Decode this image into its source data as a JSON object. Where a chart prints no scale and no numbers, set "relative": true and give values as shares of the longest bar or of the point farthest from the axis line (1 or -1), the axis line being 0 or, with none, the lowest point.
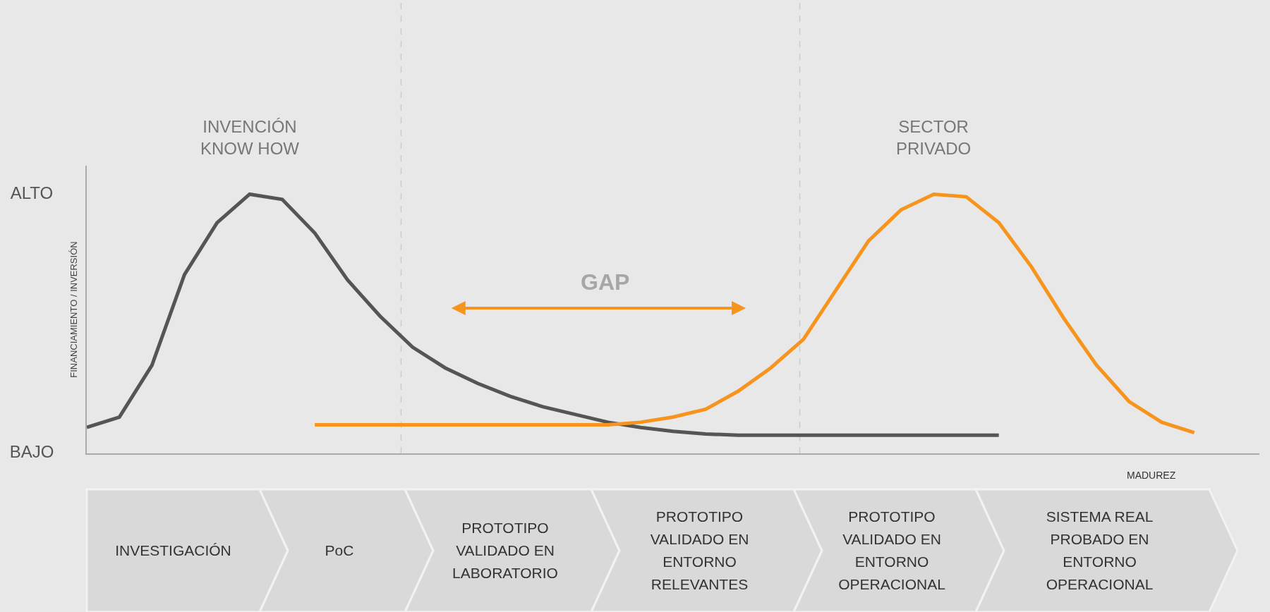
{
  "chart_data": {
    "type": "line",
    "xlabel": "MADUREZ",
    "ylabel": "FINANCIAMIENTO / INVERSIÓN",
    "categories": [
      null,
      null,
      null,
      null,
      null,
      null,
      null,
      null,
      null,
      null,
      null,
      null,
      null,
      null,
      null,
      null,
      null,
      null,
      null,
      null,
      null,
      null,
      null,
      null,
      null,
      null,
      null,
      null,
      null,
      null,
      null,
      null,
      null,
      null,
      null,
      null
    ],
    "relative": true,
    "legend": false,
    "marker": "none",
    "line_style": "solid",
    "series": [
      {
        "name": "INVENCIÓN\nKNOW HOW",
        "color": "#555555",
        "values": [
          0.1,
          0.14,
          0.34,
          0.69,
          0.89,
          1,
          0.98,
          0.85,
          0.67,
          0.53,
          0.41,
          0.33,
          0.27,
          0.22,
          0.18,
          0.15,
          0.12,
          0.1,
          0.085,
          0.075,
          0.07,
          0.07,
          0.07,
          0.07,
          0.07,
          0.07,
          0.07,
          0.07,
          0.07,
          null,
          null,
          null,
          null,
          null,
          null,
          null
        ]
      },
      {
        "name": "SECTOR\nPRIVADO",
        "color": "#f7941d",
        "values": [
          null,
          null,
          null,
          null,
          null,
          null,
          null,
          0.11,
          0.11,
          0.11,
          0.11,
          0.11,
          0.11,
          0.11,
          0.11,
          0.11,
          0.11,
          0.12,
          0.14,
          0.17,
          0.24,
          0.33,
          0.44,
          0.63,
          0.82,
          0.94,
          1,
          0.99,
          0.89,
          0.72,
          0.52,
          0.34,
          0.2,
          0.12,
          0.08,
          null
        ]
      }
    ],
    "annotations": [
      "GAP",
      "ALTO",
      "BAJO",
      "INVESTIGACIÓN",
      "PoC",
      "PROTOTIPO\nVALIDADO EN\nLABORATORIO",
      "PROTOTIPO\nVALIDADO EN\nENTORNO\nRELEVANTES",
      "PROTOTIPO\nVALIDADO EN\nENTORNO\nOPERACIONAL",
      "SISTEMA REAL\nPROBADO EN\nENTORNO\nOPERACIONAL"
    ]
  }
}
